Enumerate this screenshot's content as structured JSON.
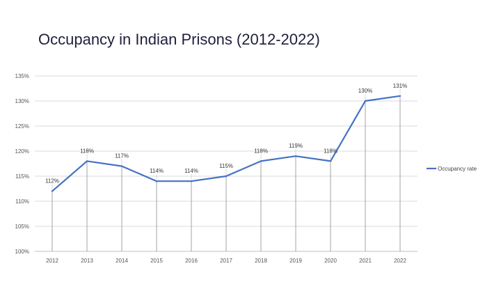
{
  "title": "Occupancy in Indian Prisons (2012-2022)",
  "chart_data": {
    "type": "line",
    "title": "Occupancy in Indian Prisons (2012-2022)",
    "xlabel": "",
    "ylabel": "",
    "categories": [
      "2012",
      "2013",
      "2014",
      "2015",
      "2016",
      "2017",
      "2018",
      "2019",
      "2020",
      "2021",
      "2022"
    ],
    "series": [
      {
        "name": "Occupancy rate",
        "values": [
          112,
          118,
          117,
          114,
          114,
          115,
          118,
          119,
          118,
          130,
          131
        ],
        "labels": [
          "112%",
          "118%",
          "117%",
          "114%",
          "114%",
          "115%",
          "118%",
          "119%",
          "118%",
          "130%",
          "131%"
        ],
        "color": "#4472C4"
      }
    ],
    "ylim": [
      100,
      135
    ],
    "yticks": [
      "100%",
      "105%",
      "110%",
      "115%",
      "120%",
      "125%",
      "130%",
      "135%"
    ],
    "grid": true,
    "drop_lines": true,
    "legend_position": "right"
  }
}
